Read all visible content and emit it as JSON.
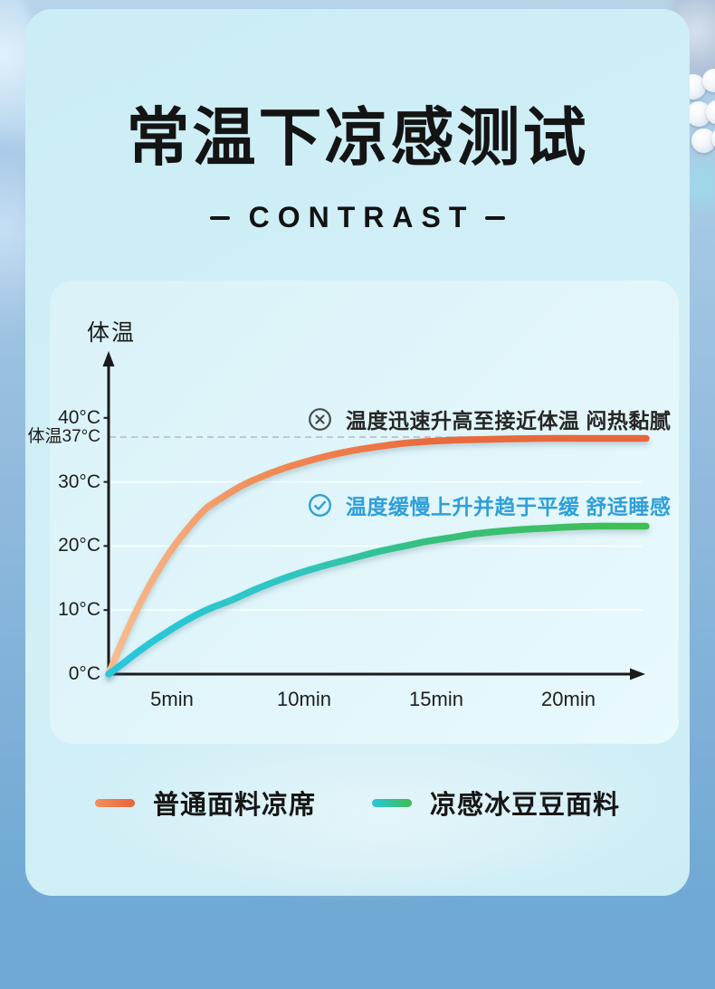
{
  "page": {
    "title": "常温下凉感测试",
    "subtitle": "CONTRAST"
  },
  "chart_data": {
    "type": "line",
    "title": "常温下凉感测试",
    "y_axis_label": "体温",
    "x_unit": "min",
    "y_unit": "°C",
    "x_range_min": [
      0,
      22
    ],
    "y_range": [
      0,
      43
    ],
    "grid": "horizontal-faint",
    "legend_position": "bottom",
    "x_ticks": [
      "5min",
      "10min",
      "15min",
      "20min"
    ],
    "y_ticks": [
      {
        "label": "40°C",
        "value": 40
      },
      {
        "label": "体温37°C",
        "value": 37
      },
      {
        "label": "30°C",
        "value": 30
      },
      {
        "label": "20°C",
        "value": 20
      },
      {
        "label": "10°C",
        "value": 10
      },
      {
        "label": "0°C",
        "value": 0
      }
    ],
    "gridline_values": [
      30,
      20,
      10
    ],
    "reference_line": {
      "value": 37,
      "style": "dashed",
      "color": "#b8c6ce"
    },
    "axis_color": "#1a1a1a",
    "series": [
      {
        "name": "普通面料凉席",
        "legend_colors": [
          "#f0905f",
          "#e8653a"
        ],
        "gradient_stops": [
          [
            "0%",
            "#f6bd92"
          ],
          [
            "30%",
            "#f08a55"
          ],
          [
            "60%",
            "#ea6a3c"
          ],
          [
            "100%",
            "#e8653a"
          ]
        ],
        "annotation": {
          "icon": "circle-x",
          "text": "温度迅速升高至接近体温 闷热黏腻",
          "color": "#262626"
        },
        "points": [
          [
            0,
            0
          ],
          [
            0.5,
            4.6
          ],
          [
            1,
            8.8
          ],
          [
            1.5,
            12.6
          ],
          [
            2,
            16
          ],
          [
            2.5,
            19
          ],
          [
            3,
            21.6
          ],
          [
            3.5,
            23.9
          ],
          [
            4,
            25.9
          ],
          [
            4.5,
            27.2
          ],
          [
            5,
            28.4
          ],
          [
            5.5,
            29.5
          ],
          [
            6,
            30.4
          ],
          [
            7,
            31.9
          ],
          [
            8,
            33.1
          ],
          [
            9,
            34.1
          ],
          [
            10,
            34.9
          ],
          [
            11,
            35.5
          ],
          [
            12,
            36
          ],
          [
            13,
            36.3
          ],
          [
            14,
            36.5
          ],
          [
            15,
            36.6
          ],
          [
            16,
            36.7
          ],
          [
            17,
            36.75
          ],
          [
            18,
            36.8
          ],
          [
            19,
            36.8
          ],
          [
            20,
            36.8
          ],
          [
            21,
            36.8
          ],
          [
            22,
            36.8
          ]
        ]
      },
      {
        "name": "凉感冰豆豆面料",
        "legend_colors": [
          "#2bc8dc",
          "#3cbc52"
        ],
        "gradient_stops": [
          [
            "0%",
            "#29c6db"
          ],
          [
            "35%",
            "#2fc6c0"
          ],
          [
            "60%",
            "#36bf7d"
          ],
          [
            "100%",
            "#40bf51"
          ]
        ],
        "annotation": {
          "icon": "circle-check",
          "text": "温度缓慢上升并趋于平缓 舒适睡感",
          "color": "#2e9fd9"
        },
        "points": [
          [
            0,
            0
          ],
          [
            0.5,
            1.4
          ],
          [
            1,
            2.9
          ],
          [
            1.5,
            4.3
          ],
          [
            2,
            5.6
          ],
          [
            3,
            8
          ],
          [
            4,
            10
          ],
          [
            5,
            11.5
          ],
          [
            6,
            13.2
          ],
          [
            7,
            14.7
          ],
          [
            8,
            16
          ],
          [
            9,
            17.1
          ],
          [
            10,
            18.1
          ],
          [
            11,
            19.1
          ],
          [
            12,
            19.9
          ],
          [
            13,
            20.7
          ],
          [
            14,
            21.3
          ],
          [
            15,
            21.9
          ],
          [
            16,
            22.3
          ],
          [
            17,
            22.6
          ],
          [
            18,
            22.8
          ],
          [
            19,
            23
          ],
          [
            20,
            23.1
          ],
          [
            21,
            23.1
          ],
          [
            22,
            23.1
          ]
        ]
      }
    ]
  },
  "colors": {
    "card_background": "#cdedf5",
    "panel_background": "#e0f5fa",
    "outer_background_bottom": "#6fa9d4",
    "annotation_cool_text": "#2e9fd9",
    "annotation_warm_text": "#262626"
  }
}
